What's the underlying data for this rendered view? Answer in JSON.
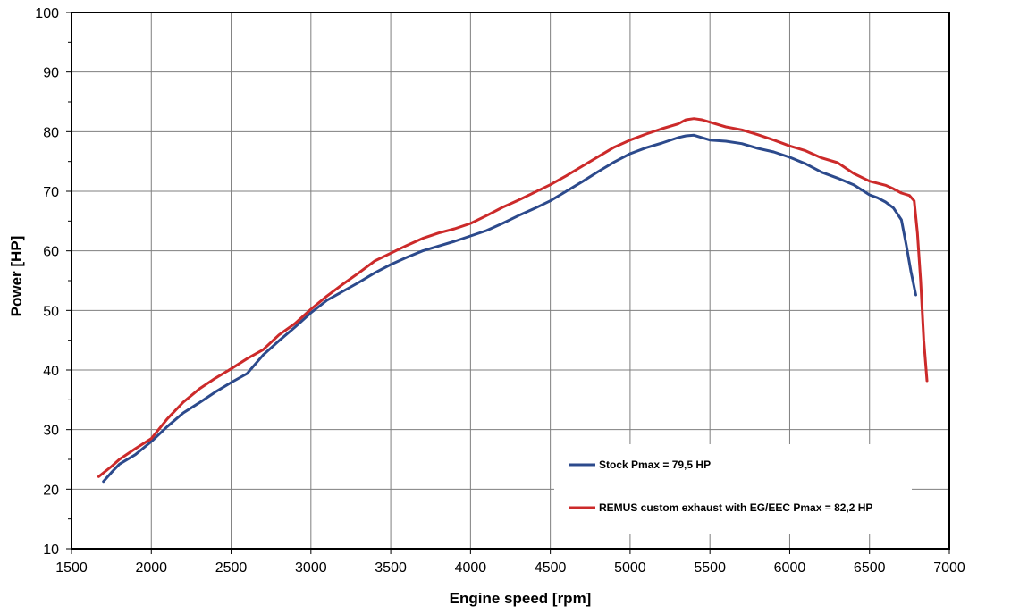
{
  "chart_data": {
    "type": "line",
    "title": "",
    "xlabel": "Engine speed [rpm]",
    "ylabel": "Power [HP]",
    "xlim": [
      1500,
      7000
    ],
    "ylim": [
      10,
      100
    ],
    "x_ticks": [
      1500,
      2000,
      2500,
      3000,
      3500,
      4000,
      4500,
      5000,
      5500,
      6000,
      6500,
      7000
    ],
    "y_ticks": [
      10,
      20,
      30,
      40,
      50,
      60,
      70,
      80,
      90,
      100
    ],
    "grid": true,
    "legend_position": "bottom-right",
    "series": [
      {
        "name": "Stock Pmax = 79,5 HP",
        "color": "#2c4a8c",
        "x": [
          1700,
          1750,
          1800,
          1900,
          2000,
          2100,
          2200,
          2300,
          2400,
          2500,
          2600,
          2700,
          2800,
          2900,
          3000,
          3100,
          3200,
          3300,
          3400,
          3500,
          3600,
          3700,
          3800,
          3900,
          4000,
          4100,
          4200,
          4300,
          4400,
          4500,
          4600,
          4700,
          4800,
          4900,
          5000,
          5100,
          5200,
          5300,
          5350,
          5400,
          5500,
          5600,
          5700,
          5800,
          5900,
          6000,
          6100,
          6200,
          6300,
          6400,
          6500,
          6550,
          6600,
          6650,
          6700,
          6730,
          6760,
          6790
        ],
        "values": [
          21.3,
          22.8,
          24.2,
          25.8,
          28,
          30.5,
          32.8,
          34.5,
          36.3,
          37.9,
          39.4,
          42.5,
          44.9,
          47.2,
          49.6,
          51.7,
          53.2,
          54.7,
          56.3,
          57.7,
          58.9,
          60,
          60.8,
          61.6,
          62.5,
          63.4,
          64.6,
          65.9,
          67.1,
          68.4,
          70,
          71.6,
          73.3,
          74.9,
          76.3,
          77.3,
          78.1,
          79,
          79.3,
          79.4,
          78.6,
          78.4,
          78,
          77.2,
          76.6,
          75.7,
          74.6,
          73.2,
          72.2,
          71.1,
          69.4,
          68.9,
          68.2,
          67.2,
          65.2,
          61,
          56.5,
          52.6
        ]
      },
      {
        "name": "REMUS custom exhaust with EG/EEC Pmax =  82,2 HP",
        "color": "#cc2a2a",
        "x": [
          1670,
          1750,
          1800,
          1900,
          2000,
          2100,
          2200,
          2300,
          2400,
          2500,
          2600,
          2700,
          2800,
          2900,
          3000,
          3100,
          3200,
          3300,
          3400,
          3500,
          3600,
          3700,
          3800,
          3900,
          4000,
          4100,
          4200,
          4300,
          4400,
          4500,
          4600,
          4700,
          4800,
          4900,
          5000,
          5100,
          5200,
          5300,
          5350,
          5400,
          5450,
          5500,
          5600,
          5700,
          5800,
          5900,
          6000,
          6100,
          6200,
          6300,
          6400,
          6500,
          6600,
          6650,
          6700,
          6750,
          6780,
          6800,
          6820,
          6840,
          6860
        ],
        "values": [
          22.1,
          23.8,
          25,
          26.8,
          28.5,
          31.8,
          34.6,
          36.8,
          38.6,
          40.2,
          41.9,
          43.4,
          45.9,
          47.8,
          50.2,
          52.4,
          54.4,
          56.3,
          58.3,
          59.6,
          60.9,
          62.1,
          63,
          63.7,
          64.6,
          65.9,
          67.3,
          68.5,
          69.8,
          71.1,
          72.6,
          74.2,
          75.8,
          77.4,
          78.6,
          79.6,
          80.5,
          81.3,
          82,
          82.2,
          82,
          81.6,
          80.8,
          80.3,
          79.5,
          78.6,
          77.6,
          76.8,
          75.6,
          74.8,
          73,
          71.7,
          71,
          70.4,
          69.7,
          69.3,
          68.4,
          63,
          55,
          45,
          38.2
        ]
      }
    ]
  }
}
